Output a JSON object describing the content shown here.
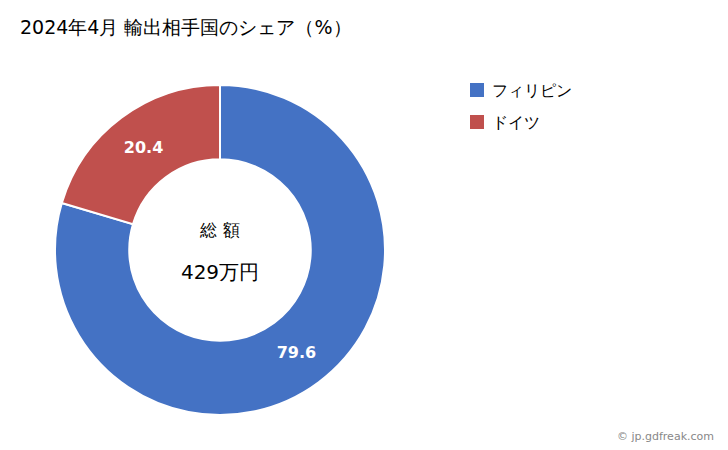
{
  "chart_data": {
    "type": "donut",
    "title": "2024年4月 輸出相手国のシェア（%）",
    "categories": [
      "フィリピン",
      "ドイツ"
    ],
    "values": [
      79.6,
      20.4
    ],
    "colors": [
      "#4472C4",
      "#C0504D"
    ],
    "data_labels": true,
    "legend": "right",
    "annotations": [
      "総 額",
      "429万円",
      "© jp.gdfreak.com"
    ]
  }
}
